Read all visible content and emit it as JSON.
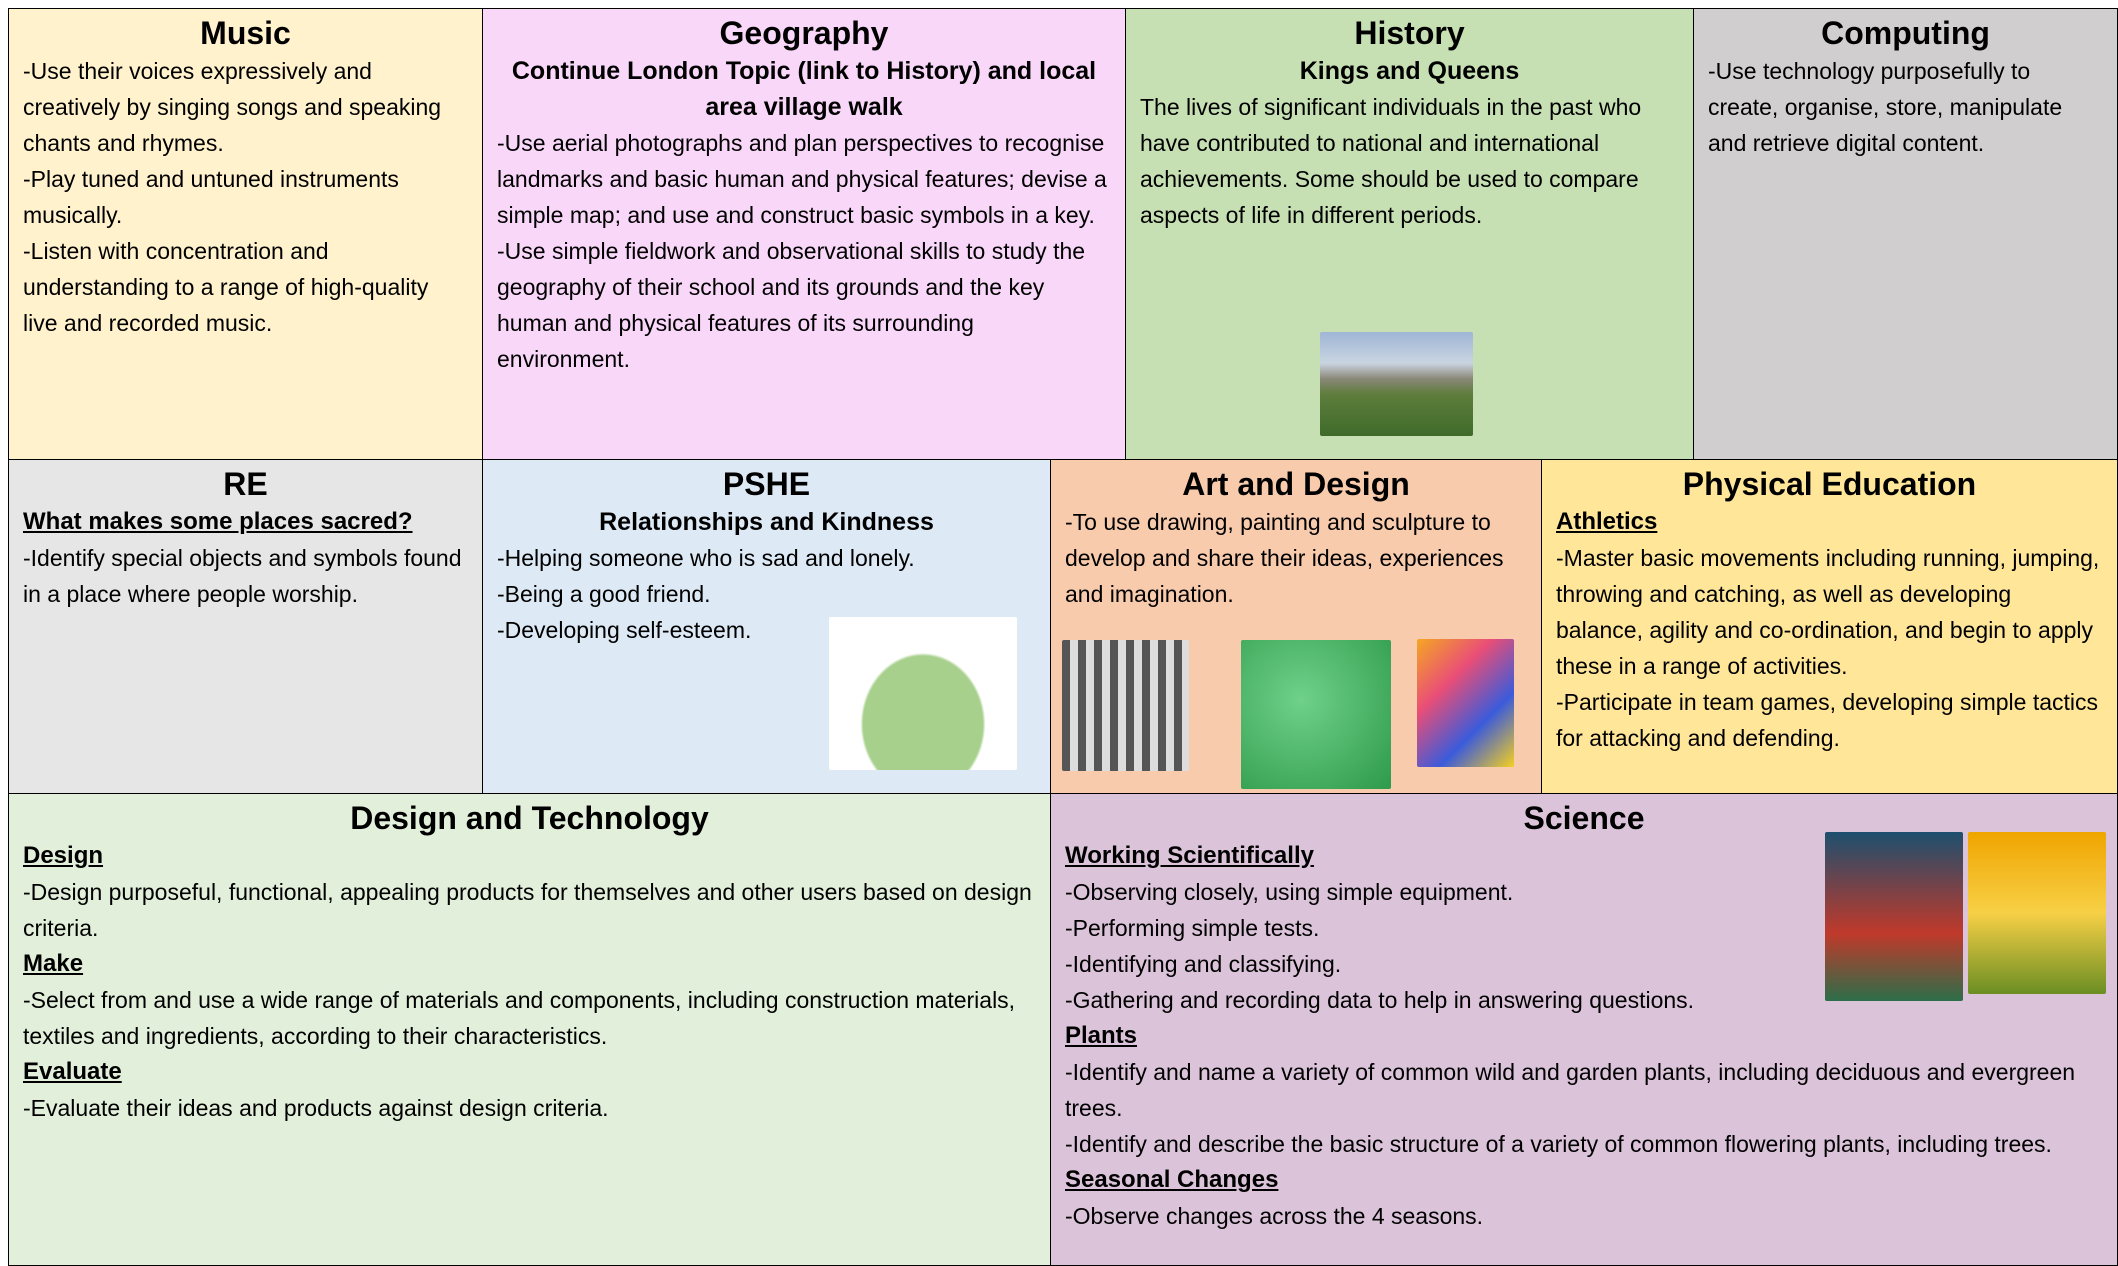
{
  "sections": [
    {
      "title": "Music",
      "blocks": [
        {
          "lines": [
            "-Use their voices expressively and creatively by singing songs and speaking chants and rhymes.",
            "-Play tuned and untuned instruments musically.",
            "-Listen with concentration and understanding to a range of high-quality live and recorded music."
          ]
        }
      ]
    },
    {
      "title": "Geography",
      "subtitle": "Continue London Topic (link to History) and local area village walk",
      "blocks": [
        {
          "lines": [
            "-Use aerial photographs and plan perspectives to recognise landmarks and basic human and physical features; devise a simple map; and use and construct basic symbols in a key.",
            "-Use simple fieldwork and observational skills to study the geography of their school and its grounds and the key human and physical features of its surrounding environment."
          ]
        }
      ]
    },
    {
      "title": "History",
      "subtitle": "Kings and Queens",
      "blocks": [
        {
          "lines": [
            "The lives of significant individuals in the past who have contributed to national and international achievements. Some should be used to compare aspects of life in different periods."
          ]
        }
      ]
    },
    {
      "title": "Computing",
      "blocks": [
        {
          "lines": [
            "-Use technology purposefully to create, organise, store, manipulate and retrieve digital content."
          ]
        }
      ]
    },
    {
      "title": "RE",
      "blocks": [
        {
          "heading": "What makes some places sacred?",
          "lines": [
            "-Identify special objects and symbols found in a place where people worship."
          ]
        }
      ]
    },
    {
      "title": "PSHE",
      "subtitle": "Relationships and Kindness",
      "blocks": [
        {
          "lines": [
            "-Helping someone who is sad and lonely.",
            "-Being a good friend.",
            "-Developing self-esteem."
          ]
        }
      ]
    },
    {
      "title": "Art and Design",
      "blocks": [
        {
          "lines": [
            "-To use drawing, painting and sculpture to develop and share their ideas, experiences and imagination."
          ]
        }
      ]
    },
    {
      "title": "Physical Education",
      "blocks": [
        {
          "heading": "Athletics",
          "lines": [
            "-Master basic movements including running, jumping, throwing and catching, as well as developing balance, agility and co-ordination, and begin to apply these in a range of activities.",
            "-Participate in team games, developing simple tactics for attacking and defending."
          ]
        }
      ]
    },
    {
      "title": "Design and Technology",
      "blocks": [
        {
          "heading": "Design",
          "lines": [
            "-Design purposeful, functional, appealing products for themselves and other users based on design criteria."
          ]
        },
        {
          "heading": "Make",
          "lines": [
            "-Select from and use a wide range of materials and components, including construction materials, textiles and ingredients, according to their characteristics."
          ]
        },
        {
          "heading": "Evaluate",
          "lines": [
            "-Evaluate their ideas and products against design criteria."
          ]
        }
      ]
    },
    {
      "title": "Science",
      "blocks": [
        {
          "heading": "Working Scientifically",
          "lines": [
            "-Observing closely, using simple equipment.",
            "-Performing simple tests.",
            "-Identifying and classifying.",
            "-Gathering and recording data to help in answering questions."
          ]
        },
        {
          "heading": "Plants",
          "lines": [
            "-Identify and name a variety of common wild and garden plants, including deciduous and evergreen trees.",
            "-Identify and describe the basic structure of a variety of common flowering plants, including trees."
          ]
        },
        {
          "heading": "Seasonal Changes",
          "lines": [
            "-Observe changes across the 4 seasons."
          ]
        }
      ]
    }
  ]
}
